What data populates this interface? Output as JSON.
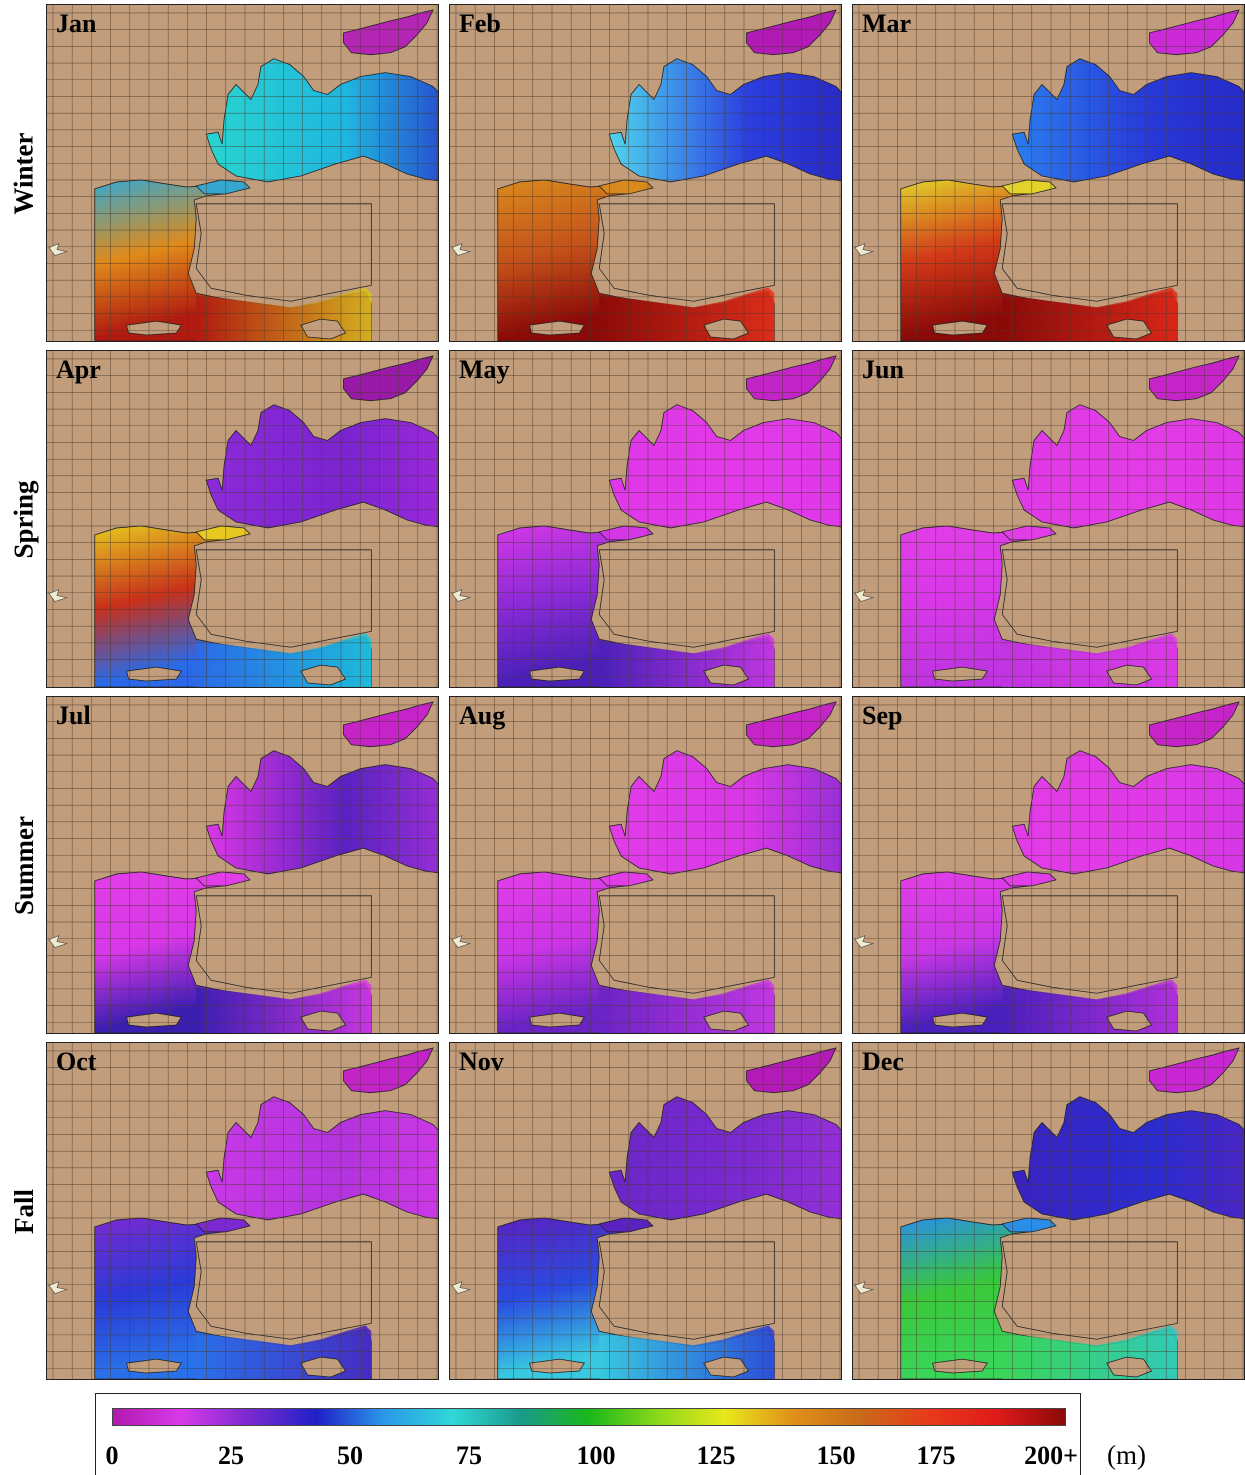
{
  "seasons": [
    "Winter",
    "Spring",
    "Summer",
    "Fall"
  ],
  "panels": [
    {
      "month": "Jan",
      "season": "Winter",
      "bs_west": "#28d4cf",
      "bs_mid": "#1fb6e0",
      "bs_east": "#2a24c9",
      "azov": "#b326b3",
      "aeg_north": "#36a8d0",
      "aeg_mid": "#e08a1a",
      "aeg_south": "#b01a10",
      "levant": "#d9c822"
    },
    {
      "month": "Feb",
      "season": "Winter",
      "bs_west": "#4fd6ee",
      "bs_mid": "#2a3ee0",
      "bs_east": "#2820b8",
      "azov": "#b21ab5",
      "aeg_north": "#d98a1e",
      "aeg_mid": "#c4521a",
      "aeg_south": "#8c0a08",
      "levant": "#e8341c"
    },
    {
      "month": "Mar",
      "season": "Winter",
      "bs_west": "#2a7ef0",
      "bs_mid": "#2838d8",
      "bs_east": "#2424c0",
      "azov": "#cc2ad8",
      "aeg_north": "#e2d22a",
      "aeg_mid": "#d23a18",
      "aeg_south": "#8a0a08",
      "levant": "#e62c1c"
    },
    {
      "month": "Apr",
      "season": "Spring",
      "bs_west": "#8c2ad8",
      "bs_mid": "#7a24d0",
      "bs_east": "#a82ae0",
      "azov": "#9a1aa8",
      "aeg_north": "#e6c820",
      "aeg_mid": "#c8301a",
      "aeg_south": "#2a6ae8",
      "levant": "#1cc8d8"
    },
    {
      "month": "May",
      "season": "Spring",
      "bs_west": "#e038e8",
      "bs_mid": "#e23ae8",
      "bs_east": "#de38ec",
      "azov": "#c224c8",
      "aeg_north": "#d438e6",
      "aeg_mid": "#8a2ad6",
      "aeg_south": "#4a20b8",
      "levant": "#d43ae8"
    },
    {
      "month": "Jun",
      "season": "Spring",
      "bs_west": "#e03ae8",
      "bs_mid": "#e23ce6",
      "bs_east": "#dc36e8",
      "azov": "#c624c8",
      "aeg_north": "#e23ee8",
      "aeg_mid": "#d838e8",
      "aeg_south": "#c034e2",
      "levant": "#e03ae8"
    },
    {
      "month": "Jul",
      "season": "Summer",
      "bs_west": "#dc36e6",
      "bs_mid": "#5a22c0",
      "bs_east": "#b034e0",
      "azov": "#c624c8",
      "aeg_north": "#e23ee8",
      "aeg_mid": "#d838e8",
      "aeg_south": "#3a1eb0",
      "levant": "#e03ae8"
    },
    {
      "month": "Aug",
      "season": "Summer",
      "bs_west": "#e23ce8",
      "bs_mid": "#d838e6",
      "bs_east": "#7a2ad0",
      "azov": "#c624c8",
      "aeg_north": "#e23ee8",
      "aeg_mid": "#cc36e6",
      "aeg_south": "#6a24c6",
      "levant": "#d23ae8"
    },
    {
      "month": "Sep",
      "season": "Summer",
      "bs_west": "#e23ce8",
      "bs_mid": "#e03ae8",
      "bs_east": "#d036e6",
      "azov": "#c624c8",
      "aeg_north": "#e23ee8",
      "aeg_mid": "#cc38e6",
      "aeg_south": "#4a20bc",
      "levant": "#c232e2"
    },
    {
      "month": "Oct",
      "season": "Fall",
      "bs_west": "#c838e6",
      "bs_mid": "#b434e0",
      "bs_east": "#d83ae8",
      "azov": "#c224c8",
      "aeg_north": "#7a2ad0",
      "aeg_mid": "#2a3ad8",
      "aeg_south": "#2a70e8",
      "levant": "#4a20bc"
    },
    {
      "month": "Nov",
      "season": "Fall",
      "bs_west": "#6a26c8",
      "bs_mid": "#7a2ad0",
      "bs_east": "#a232dc",
      "azov": "#b41ab8",
      "aeg_north": "#5a22c0",
      "aeg_mid": "#2a4ae0",
      "aeg_south": "#38c8e0",
      "levant": "#2a3ad8"
    },
    {
      "month": "Dec",
      "season": "Fall",
      "bs_west": "#3a22c0",
      "bs_mid": "#2a2cd0",
      "bs_east": "#5a22c0",
      "azov": "#c826d2",
      "aeg_north": "#2a8ee8",
      "aeg_mid": "#3ac83a",
      "aeg_south": "#3ad458",
      "levant": "#30c8c8"
    }
  ],
  "land_color": "#c19d7c",
  "colorbar": {
    "ticks": [
      "0",
      "25",
      "50",
      "75",
      "100",
      "125",
      "150",
      "175",
      "200+"
    ],
    "unit": "(m)",
    "colors": [
      "#b01ab0",
      "#d83ae8",
      "#7a2ad0",
      "#2020c8",
      "#2a9ae8",
      "#30d8d8",
      "#1a9a8a",
      "#1ab81a",
      "#8ad81a",
      "#e8e81a",
      "#e0901a",
      "#c86a1a",
      "#e83a1a",
      "#e01a1a",
      "#8a0a08"
    ]
  }
}
